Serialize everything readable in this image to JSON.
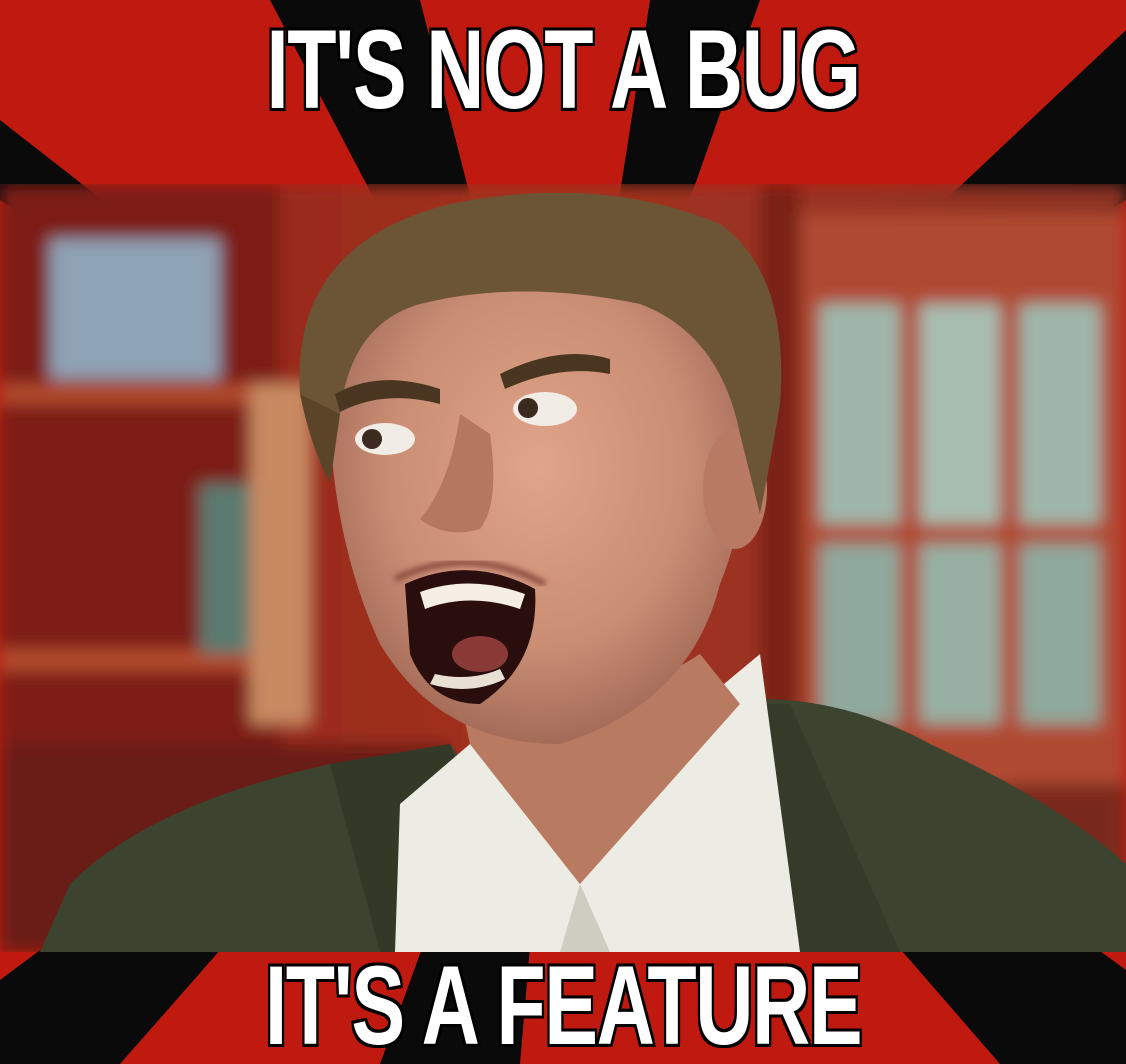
{
  "captions": {
    "top": "IT'S NOT A BUG",
    "bottom": "IT'S A FEATURE"
  },
  "colors": {
    "banner_red": "#c01a10",
    "banner_black": "#0a0a0a",
    "background_red": "#9a2a1c",
    "jacket": "#3c4430",
    "shirt": "#ecebe4",
    "skin": "#c98d74",
    "hair": "#6b5535",
    "window_glass": "#8aa59a"
  },
  "image": {
    "subject": "angry-shouting-man-photo"
  }
}
